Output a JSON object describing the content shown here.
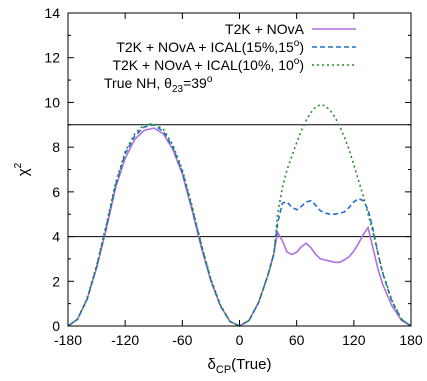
{
  "chart_data": {
    "type": "line",
    "xlabel": "δ",
    "xlabel_sub": "CP",
    "xlabel_suffix": "(True)",
    "ylabel": "χ",
    "ylabel_sup": "2",
    "xlim": [
      -180,
      180
    ],
    "ylim": [
      0,
      14
    ],
    "xticks": [
      -180,
      -120,
      -60,
      0,
      60,
      120,
      180
    ],
    "yticks": [
      0,
      2,
      4,
      6,
      8,
      10,
      12,
      14
    ],
    "grid": false,
    "legend_position": "top-right",
    "annotation": {
      "text_before": "True NH,  θ",
      "text_sub": "23",
      "text_mid": "=39",
      "text_sup": "o"
    },
    "reference_lines": [
      4,
      9
    ],
    "series": [
      {
        "name": "T2K + NOvA",
        "legend_parts": [
          "T2K + NOvA",
          "",
          ""
        ],
        "color": "#b070e0",
        "style": "solid",
        "x": [
          -180,
          -170,
          -160,
          -150,
          -140,
          -130,
          -120,
          -110,
          -100,
          -90,
          -80,
          -70,
          -60,
          -50,
          -40,
          -30,
          -20,
          -10,
          0,
          10,
          20,
          30,
          36,
          40,
          45,
          50,
          55,
          60,
          65,
          70,
          75,
          80,
          85,
          90,
          95,
          100,
          105,
          110,
          115,
          120,
          125,
          130,
          135,
          140,
          145,
          150,
          160,
          170,
          180
        ],
        "y": [
          0,
          0.3,
          1.2,
          2.6,
          4.3,
          6.2,
          7.5,
          8.35,
          8.75,
          8.85,
          8.6,
          7.9,
          6.8,
          5.2,
          3.5,
          2.0,
          0.9,
          0.2,
          0,
          0.25,
          1.05,
          2.3,
          3.25,
          4.2,
          3.8,
          3.3,
          3.2,
          3.3,
          3.55,
          3.7,
          3.5,
          3.2,
          3.0,
          2.95,
          2.9,
          2.85,
          2.85,
          2.95,
          3.1,
          3.35,
          3.7,
          4.1,
          4.4,
          3.5,
          2.6,
          1.9,
          0.9,
          0.25,
          0
        ]
      },
      {
        "name": "T2K + NOvA + ICAL(15%,15°)",
        "legend_parts": [
          "T2K + NOvA + ICAL(15%,15",
          "o",
          ")"
        ],
        "color": "#1f6fd0",
        "style": "dashed",
        "x": [
          -180,
          -170,
          -160,
          -150,
          -140,
          -130,
          -120,
          -110,
          -100,
          -90,
          -80,
          -70,
          -60,
          -50,
          -40,
          -30,
          -20,
          -10,
          0,
          10,
          20,
          30,
          36,
          40,
          45,
          50,
          55,
          60,
          65,
          70,
          75,
          80,
          85,
          90,
          95,
          100,
          105,
          110,
          115,
          120,
          125,
          130,
          135,
          140,
          145,
          150,
          160,
          170,
          180
        ],
        "y": [
          0,
          0.3,
          1.2,
          2.65,
          4.4,
          6.3,
          7.7,
          8.5,
          8.9,
          9.0,
          8.7,
          8.0,
          6.9,
          5.3,
          3.6,
          2.05,
          0.9,
          0.2,
          0,
          0.25,
          1.05,
          2.3,
          3.2,
          4.6,
          5.5,
          5.55,
          5.3,
          5.2,
          5.35,
          5.55,
          5.6,
          5.4,
          5.15,
          5.05,
          5.0,
          5.0,
          5.05,
          5.1,
          5.3,
          5.55,
          5.7,
          5.6,
          5.2,
          4.35,
          3.3,
          2.4,
          1.1,
          0.3,
          0
        ]
      },
      {
        "name": "T2K + NOvA + ICAL(10%, 10°)",
        "legend_parts": [
          "T2K + NOvA + ICAL(10%, 10",
          "o",
          ")"
        ],
        "color": "#2a8a2a",
        "style": "dotted",
        "x": [
          -180,
          -170,
          -160,
          -150,
          -140,
          -130,
          -120,
          -110,
          -100,
          -90,
          -80,
          -70,
          -60,
          -50,
          -40,
          -30,
          -20,
          -10,
          0,
          10,
          20,
          30,
          36,
          40,
          45,
          50,
          55,
          60,
          65,
          70,
          75,
          80,
          85,
          90,
          95,
          100,
          105,
          110,
          115,
          120,
          125,
          130,
          135,
          140,
          145,
          150,
          160,
          170,
          180
        ],
        "y": [
          0,
          0.3,
          1.25,
          2.7,
          4.5,
          6.4,
          7.8,
          8.6,
          9.0,
          9.05,
          8.8,
          8.1,
          7.0,
          5.4,
          3.65,
          2.1,
          0.95,
          0.2,
          0,
          0.25,
          1.05,
          2.3,
          3.2,
          5.0,
          6.2,
          7.0,
          7.6,
          8.2,
          8.75,
          9.2,
          9.55,
          9.8,
          9.9,
          9.85,
          9.65,
          9.35,
          8.95,
          8.45,
          7.9,
          7.2,
          6.5,
          5.8,
          5.0,
          4.2,
          3.3,
          2.45,
          1.15,
          0.3,
          0
        ]
      }
    ]
  }
}
